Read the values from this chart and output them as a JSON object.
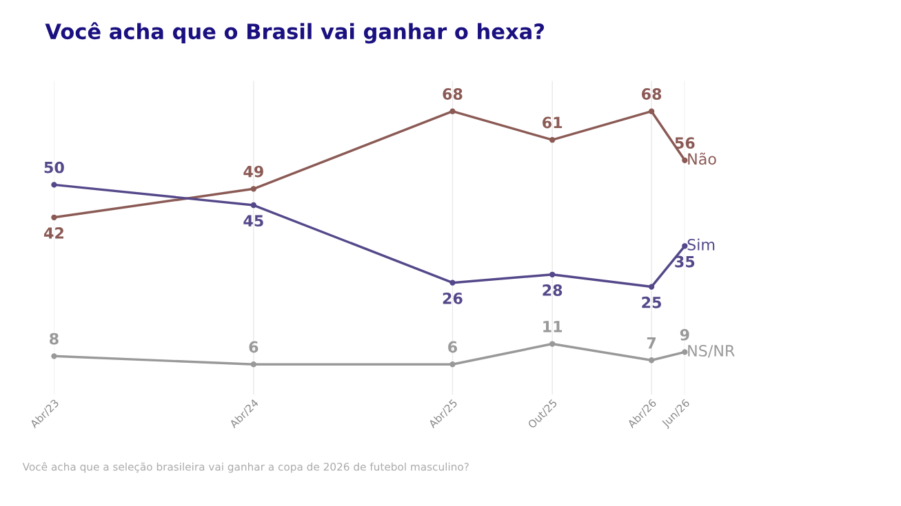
{
  "chart_data": {
    "type": "line",
    "title": "Você acha que o Brasil vai ganhar o hexa?",
    "x": [
      "2023-04",
      "2024-04",
      "2025-04",
      "2025-10",
      "2026-04",
      "2026-06"
    ],
    "xticks": [
      {
        "value": "2023-04",
        "label": "Abr/23"
      },
      {
        "value": "2024-04",
        "label": "Abr/24"
      },
      {
        "value": "2025-04",
        "label": "Abr/25"
      },
      {
        "value": "2025-10",
        "label": "Out/25"
      },
      {
        "value": "2026-04",
        "label": "Abr/26"
      },
      {
        "value": "2026-06",
        "label": "Jun/26"
      }
    ],
    "series": [
      {
        "name": "Não",
        "color": "#8b5a55",
        "values": [
          42,
          49,
          68,
          61,
          68,
          56
        ]
      },
      {
        "name": "Sim",
        "color": "#55488a",
        "values": [
          50,
          45,
          26,
          28,
          25,
          35
        ]
      },
      {
        "name": "NS/NR",
        "color": "#999999",
        "values": [
          8,
          6,
          6,
          11,
          7,
          9
        ]
      }
    ],
    "xlim": [
      "2023-04",
      "2026-06"
    ],
    "data_labels": true,
    "grid": "x",
    "marker": "circle",
    "line_style": "solid",
    "legend": false,
    "tick_labels": "x",
    "annotations": [
      "Você acha que a seleção brasileira vai ganhar a copa de 2026 de futebol masculino?"
    ]
  }
}
